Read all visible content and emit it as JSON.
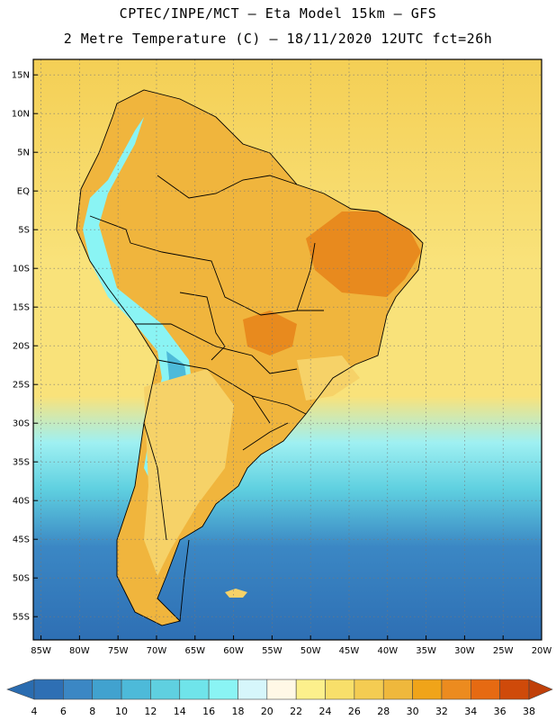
{
  "header": {
    "line1": "CPTEC/INPE/MCT –  Eta Model 15km – GFS",
    "line2": "2 Metre Temperature (C) – 18/11/2020 12UTC fct=26h"
  },
  "map": {
    "lon_range": [
      -86,
      -20
    ],
    "lat_range": [
      -58,
      17
    ],
    "lat_ticks": [
      {
        "value": 15,
        "label": "15N"
      },
      {
        "value": 10,
        "label": "10N"
      },
      {
        "value": 5,
        "label": "5N"
      },
      {
        "value": 0,
        "label": "EQ"
      },
      {
        "value": -5,
        "label": "5S"
      },
      {
        "value": -10,
        "label": "10S"
      },
      {
        "value": -15,
        "label": "15S"
      },
      {
        "value": -20,
        "label": "20S"
      },
      {
        "value": -25,
        "label": "25S"
      },
      {
        "value": -30,
        "label": "30S"
      },
      {
        "value": -35,
        "label": "35S"
      },
      {
        "value": -40,
        "label": "40S"
      },
      {
        "value": -45,
        "label": "45S"
      },
      {
        "value": -50,
        "label": "50S"
      },
      {
        "value": -55,
        "label": "55S"
      }
    ],
    "lon_ticks": [
      {
        "value": -85,
        "label": "85W"
      },
      {
        "value": -80,
        "label": "80W"
      },
      {
        "value": -75,
        "label": "75W"
      },
      {
        "value": -70,
        "label": "70W"
      },
      {
        "value": -65,
        "label": "65W"
      },
      {
        "value": -60,
        "label": "60W"
      },
      {
        "value": -55,
        "label": "55W"
      },
      {
        "value": -50,
        "label": "50W"
      },
      {
        "value": -45,
        "label": "45W"
      },
      {
        "value": -40,
        "label": "40W"
      },
      {
        "value": -35,
        "label": "35W"
      },
      {
        "value": -30,
        "label": "30W"
      },
      {
        "value": -25,
        "label": "25W"
      },
      {
        "value": -20,
        "label": "20W"
      }
    ]
  },
  "colorbar": {
    "levels": [
      "4",
      "6",
      "8",
      "10",
      "12",
      "14",
      "16",
      "18",
      "20",
      "22",
      "24",
      "26",
      "28",
      "30",
      "32",
      "34",
      "36",
      "38"
    ],
    "low_color": "#2a6cb0",
    "high_color": "#c0400a",
    "colors": [
      "#2e6fb4",
      "#3b87c4",
      "#41a2cf",
      "#4dbad9",
      "#5fd0e0",
      "#6fe4ea",
      "#8af4f4",
      "#d6f6fb",
      "#fff8e6",
      "#fcf08c",
      "#f8df6a",
      "#f4cc52",
      "#efb83c",
      "#f0a419",
      "#ec8b1f",
      "#e66a12",
      "#cf4a0a"
    ]
  },
  "scheme": {
    "ocean_north": "#f4cf55",
    "ocean_mid": "#f9e27a",
    "ocean_south1": "#9ff0f2",
    "ocean_south2": "#5fd0e0",
    "ocean_south3": "#3b87c4",
    "ocean_south4": "#2e6fb4",
    "land_base": "#f0b53d",
    "land_hot": "#e88a1e",
    "land_warm": "#f6d268",
    "andes_cold": "#4dbad9",
    "andes_mid": "#8af4f4",
    "border": "#000000"
  }
}
